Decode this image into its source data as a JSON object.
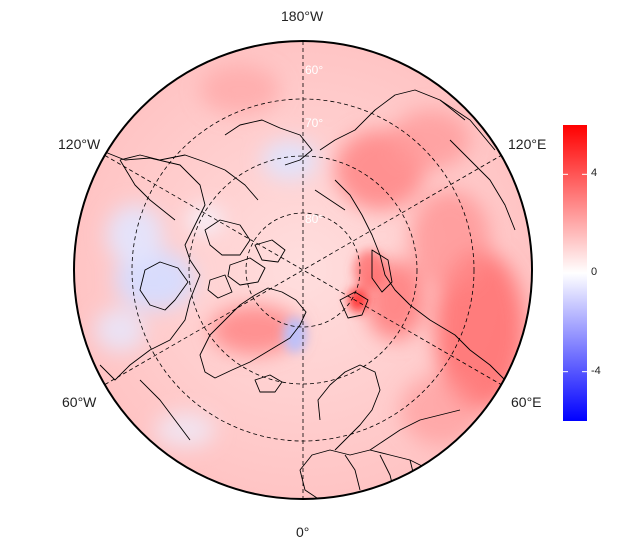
{
  "map": {
    "projection": "north-polar-stereographic",
    "longitude_labels": [
      {
        "name": "lon-label-180w",
        "text": "180°W"
      },
      {
        "name": "lon-label-120w",
        "text": "120°W"
      },
      {
        "name": "lon-label-120e",
        "text": "120°E"
      },
      {
        "name": "lon-label-60w",
        "text": "60°W"
      },
      {
        "name": "lon-label-60e",
        "text": "60°E"
      },
      {
        "name": "lon-label-0",
        "text": "0°"
      }
    ],
    "latitude_labels": [
      "60°",
      "70°",
      "80°"
    ],
    "graticule_style": "dashed"
  },
  "colorbar": {
    "min": -6,
    "max": 6,
    "ticks": [
      "4",
      "0",
      "-4"
    ],
    "colors": {
      "low": "#0000ff",
      "mid": "#ffffff",
      "high": "#ff0000"
    }
  }
}
